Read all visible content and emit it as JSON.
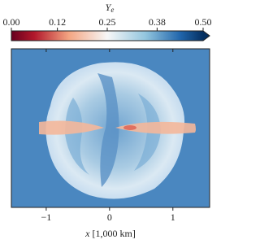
{
  "chart_data": {
    "type": "image",
    "colorbar_label": "Ye",
    "xlabel": "x [1,000 km]",
    "clim": [
      0,
      0.5
    ],
    "colorbar_extend": "max",
    "colormap": "RdBu",
    "colorbar_ticks": [
      {
        "value": 0,
        "label": "0.00"
      },
      {
        "value": 0.12,
        "label": "0.12"
      },
      {
        "value": 0.25,
        "label": "0.25"
      },
      {
        "value": 0.38,
        "label": "0.38"
      },
      {
        "value": 0.5,
        "label": "0.50"
      }
    ],
    "xlim": [
      -1.55,
      1.58
    ],
    "xticks": [
      {
        "value": -1,
        "label": "−1"
      },
      0,
      1
    ]
  }
}
